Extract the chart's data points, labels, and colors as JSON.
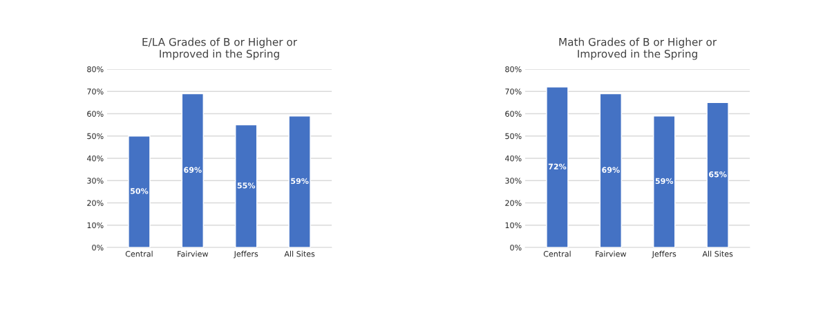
{
  "chart_data": [
    {
      "type": "bar",
      "title": "E/LA Grades of B or Higher or\nImproved in the Spring",
      "categories": [
        "Central",
        "Fairview",
        "Jeffers",
        "All Sites"
      ],
      "values": [
        50,
        69,
        55,
        59
      ],
      "value_labels": [
        "50%",
        "69%",
        "55%",
        "59%"
      ],
      "color": "#4472c4",
      "ylim": [
        0,
        80
      ],
      "yticks": [
        {
          "value": 0,
          "label": "0%"
        },
        {
          "value": 10,
          "label": "10%"
        },
        {
          "value": 20,
          "label": "20%"
        },
        {
          "value": 30,
          "label": "30%"
        },
        {
          "value": 40,
          "label": "40%"
        },
        {
          "value": 50,
          "label": "50%"
        },
        {
          "value": 60,
          "label": "60%"
        },
        {
          "value": 70,
          "label": "70%"
        },
        {
          "value": 80,
          "label": "80%"
        }
      ],
      "grid": "y"
    },
    {
      "type": "bar",
      "title": "Math Grades of B or Higher or\nImproved in the Spring",
      "categories": [
        "Central",
        "Fairview",
        "Jeffers",
        "All Sites"
      ],
      "values": [
        72,
        69,
        59,
        65
      ],
      "value_labels": [
        "72%",
        "69%",
        "59%",
        "65%"
      ],
      "color": "#4472c4",
      "ylim": [
        0,
        80
      ],
      "yticks": [
        {
          "value": 0,
          "label": "0%"
        },
        {
          "value": 10,
          "label": "10%"
        },
        {
          "value": 20,
          "label": "20%"
        },
        {
          "value": 30,
          "label": "30%"
        },
        {
          "value": 40,
          "label": "40%"
        },
        {
          "value": 50,
          "label": "50%"
        },
        {
          "value": 60,
          "label": "60%"
        },
        {
          "value": 70,
          "label": "70%"
        },
        {
          "value": 80,
          "label": "80%"
        }
      ],
      "grid": "y"
    }
  ]
}
